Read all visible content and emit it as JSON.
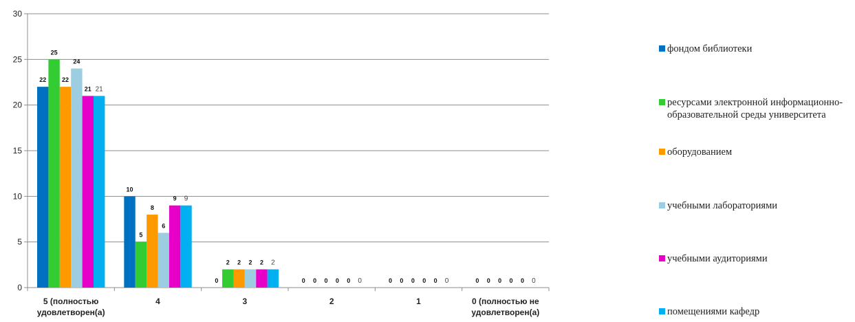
{
  "chart_data": {
    "type": "bar",
    "categories": [
      "5 (полностью удовлетворен(а)",
      "4",
      "3",
      "2",
      "1",
      "0 (полностью не удовлетворен(а)"
    ],
    "category_lines": [
      [
        "5 (полностью",
        "удовлетворен(а)"
      ],
      [
        "4"
      ],
      [
        "3"
      ],
      [
        "2"
      ],
      [
        "1"
      ],
      [
        "0 (полностью не",
        "удовлетворен(а)"
      ]
    ],
    "series": [
      {
        "name": "фондом библиотеки",
        "color": "#0070c0",
        "values": [
          22,
          10,
          0,
          0,
          0,
          0
        ]
      },
      {
        "name": "ресурсами электронной информационно-образовательной среды университета",
        "color": "#33cc33",
        "values": [
          25,
          5,
          2,
          0,
          0,
          0
        ]
      },
      {
        "name": "оборудованием",
        "color": "#ff9900",
        "values": [
          22,
          8,
          2,
          0,
          0,
          0
        ]
      },
      {
        "name": "учебными лабораториями",
        "color": "#9dcde0",
        "values": [
          24,
          6,
          2,
          0,
          0,
          0
        ]
      },
      {
        "name": "учебными аудиториями",
        "color": "#e600c8",
        "values": [
          21,
          9,
          2,
          0,
          0,
          0
        ]
      },
      {
        "name": "помещениями кафедр",
        "color": "#00b0f0",
        "values": [
          21,
          9,
          2,
          0,
          0,
          0
        ]
      }
    ],
    "ylim": [
      0,
      30
    ],
    "yticks": [
      0,
      5,
      10,
      15,
      20,
      25,
      30
    ],
    "grid": true,
    "legend_position": "right"
  }
}
